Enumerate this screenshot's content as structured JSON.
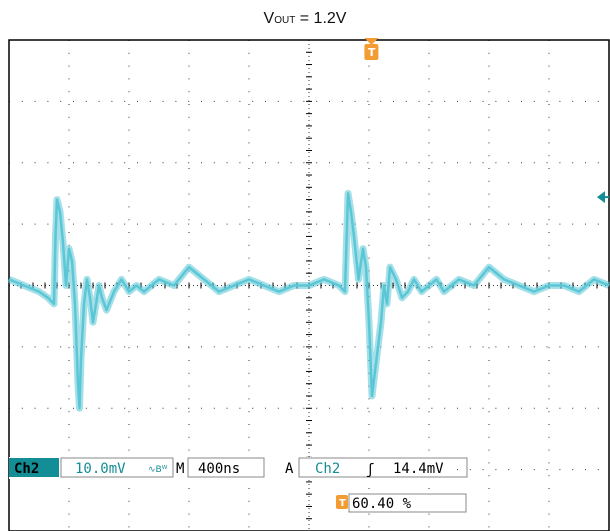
{
  "title": {
    "main": "V",
    "subscript": "OUT",
    "rest": " = 1.2V"
  },
  "colors": {
    "trace": "#5bc7d6",
    "channel_badge": "#138d96",
    "trigger_marker": "#f39c34",
    "grid": "#000000"
  },
  "readout": {
    "channel": "Ch2",
    "vertical_scale": "10.0mV",
    "bandwidth_symbol": "∿Bᵂ",
    "timebase_label": "M",
    "timebase": "400ns",
    "trigger_mode": "A",
    "trigger_channel": "Ch2",
    "trigger_slope_symbol": "ʃ",
    "trigger_level": "14.4mV",
    "trigger_position": "60.40 %",
    "trigger_icon": "T"
  },
  "chart_data": {
    "type": "line",
    "title": "",
    "xlabel": "",
    "ylabel": "",
    "x_unit": "ns",
    "y_unit": "mV",
    "xlim": [
      0,
      4000
    ],
    "ylim": [
      -40,
      40
    ],
    "x_per_div": 400,
    "y_per_div": 10,
    "divisions_x": 10,
    "divisions_y": 8,
    "grid": true,
    "trigger_time_ns": 2416,
    "trigger_level_mV": 14.4,
    "series": [
      {
        "name": "",
        "x": [
          0,
          100,
          200,
          260,
          300,
          310,
          320,
          340,
          360,
          380,
          400,
          420,
          440,
          460,
          470,
          480,
          500,
          520,
          540,
          560,
          580,
          600,
          620,
          650,
          700,
          750,
          800,
          850,
          900,
          950,
          1000,
          1100,
          1200,
          1300,
          1400,
          1500,
          1600,
          1700,
          1800,
          1900,
          2000,
          2100,
          2200,
          2240,
          2260,
          2280,
          2300,
          2330,
          2360,
          2380,
          2400,
          2420,
          2440,
          2460,
          2480,
          2500,
          2520,
          2540,
          2580,
          2620,
          2660,
          2700,
          2750,
          2800,
          2850,
          2900,
          2950,
          3000,
          3100,
          3200,
          3300,
          3400,
          3500,
          3600,
          3700,
          3800,
          3900,
          4000
        ],
        "y": [
          1,
          0,
          -1,
          -2,
          -3,
          8,
          14,
          12,
          7,
          0,
          6,
          4,
          -3,
          -16,
          -20,
          -12,
          -3,
          1,
          -2,
          -6,
          -3,
          0,
          -2,
          -4,
          -1,
          1,
          -1,
          0,
          -1,
          0,
          1,
          0,
          3,
          1,
          -1,
          0,
          1,
          0,
          -1,
          0,
          0,
          1,
          0,
          -1,
          15,
          12,
          8,
          1,
          6,
          3,
          -6,
          -18,
          -14,
          -10,
          -6,
          0,
          -3,
          3,
          1,
          -2,
          -1,
          1,
          -1,
          0,
          1,
          -1,
          0,
          1,
          0,
          3,
          1,
          0,
          -1,
          0,
          0,
          -1,
          1,
          0
        ]
      }
    ]
  }
}
